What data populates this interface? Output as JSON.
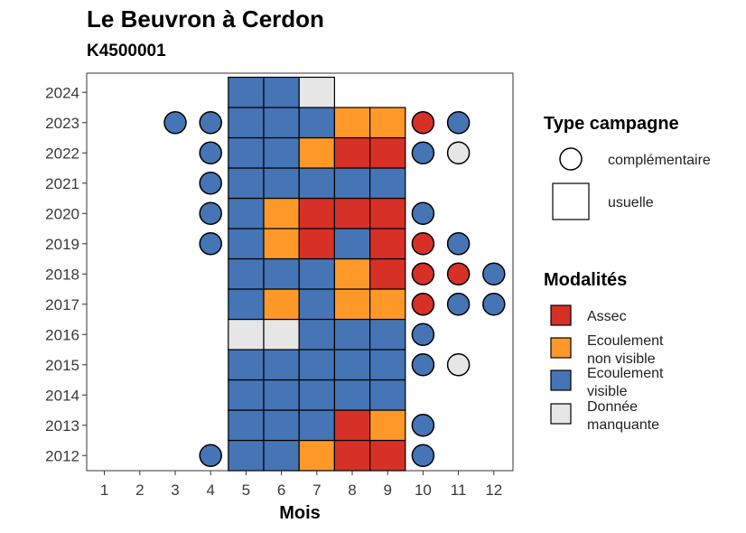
{
  "title": "Le Beuvron à Cerdon",
  "subtitle": "K4500001",
  "colors": {
    "Assec": "#d73027",
    "Ecoulement non visible": "#fe9929",
    "Ecoulement visible": "#4575b4",
    "Donnée manquante": "#e6e6e6"
  },
  "chart_data": {
    "type": "heatmap",
    "xlabel": "Mois",
    "ylabel": "",
    "x_ticks": [
      "1",
      "2",
      "3",
      "4",
      "5",
      "6",
      "7",
      "8",
      "9",
      "10",
      "11",
      "12"
    ],
    "y_ticks": [
      "2012",
      "2013",
      "2014",
      "2015",
      "2016",
      "2017",
      "2018",
      "2019",
      "2020",
      "2021",
      "2022",
      "2023",
      "2024"
    ],
    "xlim": [
      0.5,
      12.5
    ],
    "ylim": [
      2011.5,
      2024.6
    ],
    "grid": false,
    "legend_position": "right",
    "usuelle": [
      {
        "year": 2012,
        "months": [
          5,
          6,
          7,
          8,
          9
        ],
        "values": [
          "Ecoulement visible",
          "Ecoulement visible",
          "Ecoulement non visible",
          "Assec",
          "Assec"
        ]
      },
      {
        "year": 2013,
        "months": [
          5,
          6,
          7,
          8,
          9
        ],
        "values": [
          "Ecoulement visible",
          "Ecoulement visible",
          "Ecoulement visible",
          "Assec",
          "Ecoulement non visible"
        ]
      },
      {
        "year": 2014,
        "months": [
          5,
          6,
          7,
          8,
          9
        ],
        "values": [
          "Ecoulement visible",
          "Ecoulement visible",
          "Ecoulement visible",
          "Ecoulement visible",
          "Ecoulement visible"
        ]
      },
      {
        "year": 2015,
        "months": [
          5,
          6,
          7,
          8,
          9
        ],
        "values": [
          "Ecoulement visible",
          "Ecoulement visible",
          "Ecoulement visible",
          "Ecoulement visible",
          "Ecoulement visible"
        ]
      },
      {
        "year": 2016,
        "months": [
          5,
          6,
          7,
          8,
          9
        ],
        "values": [
          "Donnée manquante",
          "Donnée manquante",
          "Ecoulement visible",
          "Ecoulement visible",
          "Ecoulement visible"
        ]
      },
      {
        "year": 2017,
        "months": [
          5,
          6,
          7,
          8,
          9
        ],
        "values": [
          "Ecoulement visible",
          "Ecoulement non visible",
          "Ecoulement visible",
          "Ecoulement non visible",
          "Ecoulement non visible"
        ]
      },
      {
        "year": 2018,
        "months": [
          5,
          6,
          7,
          8,
          9
        ],
        "values": [
          "Ecoulement visible",
          "Ecoulement visible",
          "Ecoulement visible",
          "Ecoulement non visible",
          "Assec"
        ]
      },
      {
        "year": 2019,
        "months": [
          5,
          6,
          7,
          8,
          9
        ],
        "values": [
          "Ecoulement visible",
          "Ecoulement non visible",
          "Assec",
          "Ecoulement visible",
          "Assec"
        ]
      },
      {
        "year": 2020,
        "months": [
          5,
          6,
          7,
          8,
          9
        ],
        "values": [
          "Ecoulement visible",
          "Ecoulement non visible",
          "Assec",
          "Assec",
          "Assec"
        ]
      },
      {
        "year": 2021,
        "months": [
          5,
          6,
          7,
          8,
          9
        ],
        "values": [
          "Ecoulement visible",
          "Ecoulement visible",
          "Ecoulement visible",
          "Ecoulement visible",
          "Ecoulement visible"
        ]
      },
      {
        "year": 2022,
        "months": [
          5,
          6,
          7,
          8,
          9
        ],
        "values": [
          "Ecoulement visible",
          "Ecoulement visible",
          "Ecoulement non visible",
          "Assec",
          "Assec"
        ]
      },
      {
        "year": 2023,
        "months": [
          5,
          6,
          7,
          8,
          9
        ],
        "values": [
          "Ecoulement visible",
          "Ecoulement visible",
          "Ecoulement visible",
          "Ecoulement non visible",
          "Ecoulement non visible"
        ]
      },
      {
        "year": 2024,
        "months": [
          5,
          6,
          7
        ],
        "values": [
          "Ecoulement visible",
          "Ecoulement visible",
          "Donnée manquante"
        ]
      }
    ],
    "complementaire": [
      {
        "year": 2012,
        "month": 4,
        "value": "Ecoulement visible"
      },
      {
        "year": 2012,
        "month": 10,
        "value": "Ecoulement visible"
      },
      {
        "year": 2013,
        "month": 10,
        "value": "Ecoulement visible"
      },
      {
        "year": 2015,
        "month": 10,
        "value": "Ecoulement visible"
      },
      {
        "year": 2015,
        "month": 11,
        "value": "Donnée manquante"
      },
      {
        "year": 2016,
        "month": 10,
        "value": "Ecoulement visible"
      },
      {
        "year": 2017,
        "month": 10,
        "value": "Assec"
      },
      {
        "year": 2017,
        "month": 11,
        "value": "Ecoulement visible"
      },
      {
        "year": 2017,
        "month": 12,
        "value": "Ecoulement visible"
      },
      {
        "year": 2018,
        "month": 10,
        "value": "Assec"
      },
      {
        "year": 2018,
        "month": 11,
        "value": "Assec"
      },
      {
        "year": 2018,
        "month": 12,
        "value": "Ecoulement visible"
      },
      {
        "year": 2019,
        "month": 4,
        "value": "Ecoulement visible"
      },
      {
        "year": 2019,
        "month": 10,
        "value": "Assec"
      },
      {
        "year": 2019,
        "month": 11,
        "value": "Ecoulement visible"
      },
      {
        "year": 2020,
        "month": 4,
        "value": "Ecoulement visible"
      },
      {
        "year": 2020,
        "month": 10,
        "value": "Ecoulement visible"
      },
      {
        "year": 2021,
        "month": 4,
        "value": "Ecoulement visible"
      },
      {
        "year": 2022,
        "month": 4,
        "value": "Ecoulement visible"
      },
      {
        "year": 2022,
        "month": 10,
        "value": "Ecoulement visible"
      },
      {
        "year": 2022,
        "month": 11,
        "value": "Donnée manquante"
      },
      {
        "year": 2023,
        "month": 3,
        "value": "Ecoulement visible"
      },
      {
        "year": 2023,
        "month": 4,
        "value": "Ecoulement visible"
      },
      {
        "year": 2023,
        "month": 10,
        "value": "Assec"
      },
      {
        "year": 2023,
        "month": 11,
        "value": "Ecoulement visible"
      }
    ]
  },
  "legend": {
    "type_title": "Type campagne",
    "type_items": [
      {
        "label": "complémentaire",
        "shape": "circle"
      },
      {
        "label": "usuelle",
        "shape": "square"
      }
    ],
    "modal_title": "Modalités",
    "modal_items": [
      {
        "key": "Assec",
        "lines": [
          "Assec"
        ]
      },
      {
        "key": "Ecoulement non visible",
        "lines": [
          "Ecoulement",
          "non visible"
        ]
      },
      {
        "key": "Ecoulement visible",
        "lines": [
          "Ecoulement",
          "visible"
        ]
      },
      {
        "key": "Donnée manquante",
        "lines": [
          "Donnée",
          "manquante"
        ]
      }
    ]
  }
}
